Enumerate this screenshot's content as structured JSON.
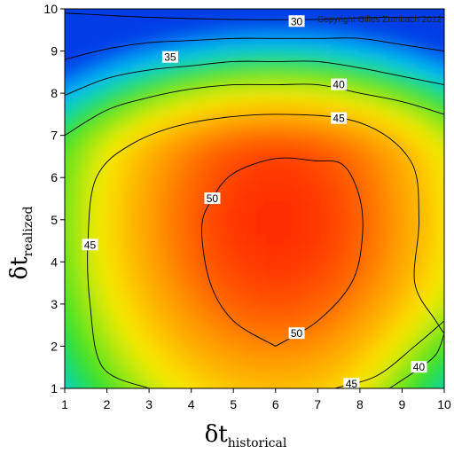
{
  "chart_data": {
    "type": "heatmap",
    "subtype": "filled-contour",
    "title": "",
    "annotation": "Copyright Gilles Zumbach 2012",
    "xlabel": {
      "symbol": "δt",
      "subscript": "historical"
    },
    "ylabel": {
      "symbol": "δt",
      "subscript": "realized"
    },
    "xlim": [
      1,
      10
    ],
    "ylim": [
      1,
      10
    ],
    "x_ticks": [
      1,
      2,
      3,
      4,
      5,
      6,
      7,
      8,
      9,
      10
    ],
    "y_ticks": [
      1,
      2,
      3,
      4,
      5,
      6,
      7,
      8,
      9,
      10
    ],
    "color_range": [
      25,
      55
    ],
    "colormap": "blue-cyan-green-yellow-red",
    "grid": false,
    "peak": {
      "x": 6,
      "y": 5,
      "value": 54
    },
    "contours": [
      {
        "level": 30,
        "points": [
          [
            1,
            9.9
          ],
          [
            3,
            9.8
          ],
          [
            5,
            9.75
          ],
          [
            7,
            9.75
          ],
          [
            8.5,
            9.8
          ],
          [
            10,
            9.8
          ]
        ]
      },
      {
        "level": 35,
        "points": [
          [
            1,
            8.8
          ],
          [
            2,
            9.05
          ],
          [
            3,
            9.2
          ],
          [
            4,
            9.25
          ],
          [
            5,
            9.3
          ],
          [
            6,
            9.3
          ],
          [
            7,
            9.3
          ],
          [
            8,
            9.3
          ],
          [
            9,
            9.15
          ],
          [
            10,
            9.0
          ]
        ]
      },
      {
        "level": 40,
        "points": [
          [
            1,
            7.95
          ],
          [
            2,
            8.35
          ],
          [
            3,
            8.55
          ],
          [
            4,
            8.65
          ],
          [
            5,
            8.75
          ],
          [
            6,
            8.75
          ],
          [
            7,
            8.75
          ],
          [
            8,
            8.6
          ],
          [
            9,
            8.4
          ],
          [
            10,
            8.2
          ]
        ]
      },
      {
        "level": 40,
        "points": [
          [
            8.7,
            1.0
          ],
          [
            9.3,
            1.4
          ],
          [
            9.8,
            1.8
          ],
          [
            10,
            2.3
          ]
        ]
      },
      {
        "level": 45,
        "points": [
          [
            1,
            7.0
          ],
          [
            2,
            7.6
          ],
          [
            3,
            7.9
          ],
          [
            4,
            8.1
          ],
          [
            5,
            8.2
          ],
          [
            6,
            8.2
          ],
          [
            7,
            8.2
          ],
          [
            8,
            8.0
          ],
          [
            9,
            7.8
          ],
          [
            10,
            7.5
          ]
        ]
      },
      {
        "level": 45,
        "points": [
          [
            7.4,
            1.0
          ],
          [
            8.4,
            1.3
          ],
          [
            9.3,
            2.0
          ],
          [
            10,
            2.6
          ]
        ]
      },
      {
        "level": 45,
        "points": [
          [
            3,
            1.0
          ],
          [
            1.9,
            1.5
          ],
          [
            1.6,
            3.0
          ],
          [
            1.55,
            4.5
          ],
          [
            1.75,
            6.0
          ],
          [
            2.6,
            6.8
          ],
          [
            4,
            7.3
          ],
          [
            6,
            7.5
          ],
          [
            8,
            7.3
          ],
          [
            9.2,
            6.4
          ],
          [
            9.4,
            5.0
          ],
          [
            9.3,
            3.5
          ],
          [
            9.8,
            2.6
          ],
          [
            10,
            2.3
          ]
        ]
      },
      {
        "level": 50,
        "points": [
          [
            6,
            2.0
          ],
          [
            7,
            2.6
          ],
          [
            7.8,
            3.5
          ],
          [
            8.05,
            4.5
          ],
          [
            8.0,
            5.5
          ],
          [
            7.6,
            6.3
          ],
          [
            6.9,
            6.4
          ],
          [
            6,
            6.45
          ],
          [
            5.0,
            6.1
          ],
          [
            4.5,
            5.5
          ],
          [
            4.25,
            4.8
          ],
          [
            4.45,
            3.5
          ],
          [
            5,
            2.6
          ],
          [
            6,
            2.0
          ]
        ]
      }
    ],
    "contour_labels": [
      {
        "level": 30,
        "text": "30",
        "x": 6.5,
        "y": 9.7
      },
      {
        "level": 35,
        "text": "35",
        "x": 3.5,
        "y": 8.85
      },
      {
        "level": 40,
        "text": "40",
        "x": 7.5,
        "y": 8.2
      },
      {
        "level": 40,
        "text": "40",
        "x": 9.4,
        "y": 1.5
      },
      {
        "level": 45,
        "text": "45",
        "x": 7.5,
        "y": 7.4
      },
      {
        "level": 45,
        "text": "45",
        "x": 1.6,
        "y": 4.4
      },
      {
        "level": 45,
        "text": "45",
        "x": 7.8,
        "y": 1.1
      },
      {
        "level": 50,
        "text": "50",
        "x": 4.5,
        "y": 5.5
      },
      {
        "level": 50,
        "text": "50",
        "x": 6.5,
        "y": 2.3
      }
    ]
  }
}
